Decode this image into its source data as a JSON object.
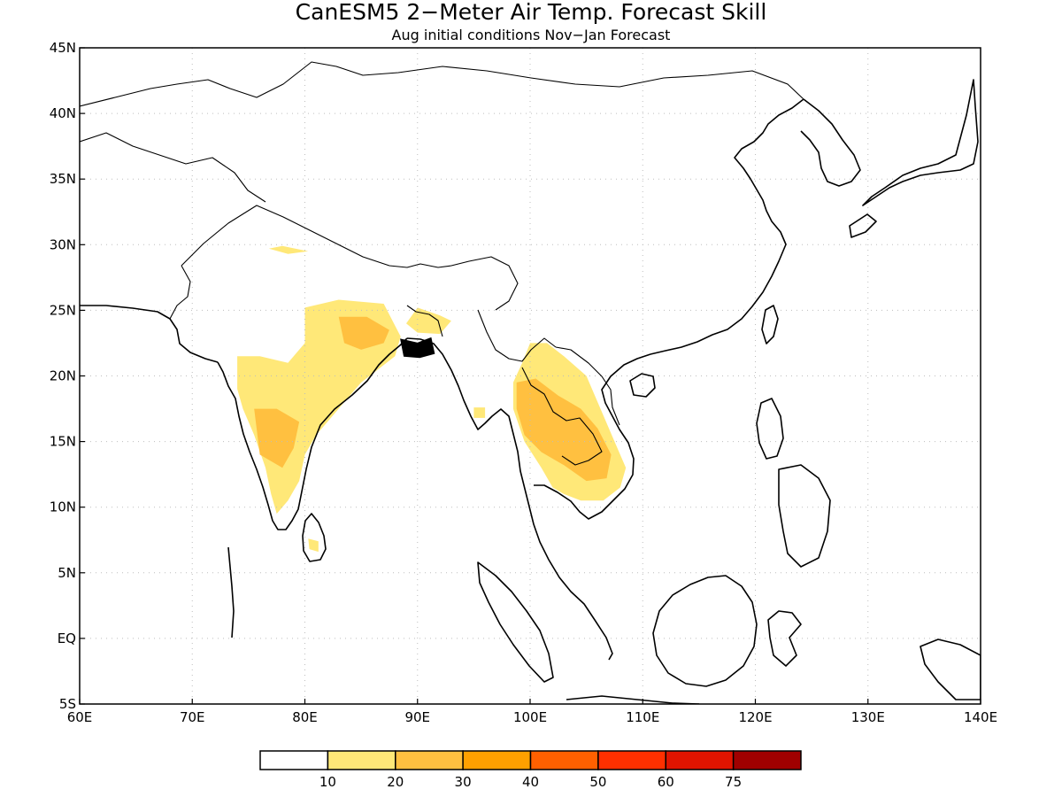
{
  "title": "CanESM5 2−Meter Air Temp. Forecast Skill",
  "subtitle": "Aug initial conditions   Nov−Jan Forecast",
  "chart_data": {
    "type": "heatmap",
    "projection": "lat-lon",
    "xlim": [
      60,
      140
    ],
    "ylim": [
      -5,
      45
    ],
    "x_ticks": [
      "60E",
      "70E",
      "80E",
      "90E",
      "100E",
      "110E",
      "120E",
      "130E",
      "140E"
    ],
    "y_ticks": [
      "5S",
      "EQ",
      "5N",
      "10N",
      "15N",
      "20N",
      "25N",
      "30N",
      "35N",
      "40N",
      "45N"
    ],
    "grid": true,
    "colorbar": {
      "colors": [
        "#ffffff",
        "#ffe878",
        "#ffc040",
        "#ffa000",
        "#ff6000",
        "#ff3000",
        "#e01400",
        "#a00000"
      ],
      "labels": [
        "10",
        "20",
        "30",
        "40",
        "50",
        "60",
        "75"
      ]
    },
    "regions": [
      {
        "name": "",
        "level": "10-20",
        "color": "#ffe878",
        "polygon": [
          [
            76.8,
            29.7
          ],
          [
            78,
            29.9
          ],
          [
            80.3,
            29.5
          ],
          [
            78.5,
            29.3
          ],
          [
            76.8,
            29.7
          ]
        ]
      },
      {
        "name": "",
        "level": "10-20",
        "color": "#ffe878",
        "polygon": [
          [
            80,
            25.2
          ],
          [
            83,
            25.8
          ],
          [
            87,
            25.5
          ],
          [
            88.5,
            23
          ],
          [
            88,
            21.5
          ],
          [
            86.5,
            20.5
          ],
          [
            85,
            19.5
          ],
          [
            83.5,
            18
          ],
          [
            82,
            16.5
          ],
          [
            81,
            15.5
          ],
          [
            80,
            14
          ],
          [
            79.5,
            12
          ],
          [
            78.5,
            10.5
          ],
          [
            77.5,
            9.5
          ],
          [
            77,
            11
          ],
          [
            76.5,
            13
          ],
          [
            75.5,
            15.5
          ],
          [
            74.5,
            17.5
          ],
          [
            74,
            19
          ],
          [
            74,
            21.5
          ],
          [
            76,
            21.5
          ],
          [
            78.5,
            21
          ],
          [
            80,
            22.5
          ],
          [
            80,
            25.2
          ]
        ]
      },
      {
        "name": "",
        "level": "20-30",
        "color": "#ffc040",
        "polygon": [
          [
            83,
            24.5
          ],
          [
            85.5,
            24.5
          ],
          [
            87.5,
            23.5
          ],
          [
            87,
            22.5
          ],
          [
            85,
            22
          ],
          [
            83.5,
            22.5
          ],
          [
            83,
            24.5
          ]
        ]
      },
      {
        "name": "",
        "level": "20-30",
        "color": "#ffc040",
        "polygon": [
          [
            75.5,
            17.5
          ],
          [
            77.5,
            17.5
          ],
          [
            79.5,
            16.5
          ],
          [
            79,
            14.5
          ],
          [
            78,
            13
          ],
          [
            76,
            14
          ],
          [
            75.5,
            17.5
          ]
        ]
      },
      {
        "name": "",
        "level": "10-20",
        "color": "#ffe878",
        "polygon": [
          [
            80.3,
            7.6
          ],
          [
            81.2,
            7.4
          ],
          [
            81.2,
            6.6
          ],
          [
            80.4,
            6.8
          ],
          [
            80.3,
            7.6
          ]
        ]
      },
      {
        "name": "",
        "level": "10-20",
        "color": "#ffe878",
        "polygon": [
          [
            90,
            25.2
          ],
          [
            92,
            24.6
          ],
          [
            93,
            24.2
          ],
          [
            92,
            23.2
          ],
          [
            90,
            23.3
          ],
          [
            89,
            24
          ],
          [
            90,
            25.2
          ]
        ]
      },
      {
        "name": "",
        "level": "10-20",
        "color": "#ffe878",
        "polygon": [
          [
            95,
            17.6
          ],
          [
            96,
            17.6
          ],
          [
            96,
            16.8
          ],
          [
            95,
            16.8
          ],
          [
            95,
            17.6
          ]
        ]
      },
      {
        "name": "",
        "level": "10-20",
        "color": "#ffe878",
        "polygon": [
          [
            100,
            22.5
          ],
          [
            101.5,
            22.5
          ],
          [
            103,
            21.5
          ],
          [
            105,
            20
          ],
          [
            106.5,
            17
          ],
          [
            107.5,
            15
          ],
          [
            108.5,
            13
          ],
          [
            108,
            11.5
          ],
          [
            106.5,
            10.5
          ],
          [
            104.5,
            10.5
          ],
          [
            103,
            11
          ],
          [
            102,
            11.5
          ],
          [
            101,
            13
          ],
          [
            99.5,
            15
          ],
          [
            98.5,
            17.5
          ],
          [
            98.5,
            19.5
          ],
          [
            99.3,
            21
          ],
          [
            100,
            22.5
          ]
        ]
      },
      {
        "name": "",
        "level": "20-30",
        "color": "#ffc040",
        "polygon": [
          [
            98.8,
            19.5
          ],
          [
            100.5,
            19.8
          ],
          [
            102.5,
            18.5
          ],
          [
            104.5,
            17.5
          ],
          [
            106,
            16
          ],
          [
            107.2,
            14
          ],
          [
            106.8,
            12.2
          ],
          [
            105,
            12
          ],
          [
            103,
            13.2
          ],
          [
            101,
            14.2
          ],
          [
            99.5,
            15.5
          ],
          [
            98.8,
            17.5
          ],
          [
            98.8,
            19.5
          ]
        ]
      }
    ],
    "black_cells": [
      {
        "polygon": [
          [
            88.5,
            22.8
          ],
          [
            90,
            22.5
          ],
          [
            91.2,
            22.9
          ],
          [
            91.5,
            21.7
          ],
          [
            90.2,
            21.4
          ],
          [
            88.8,
            21.5
          ],
          [
            88.5,
            22.8
          ]
        ]
      }
    ]
  }
}
